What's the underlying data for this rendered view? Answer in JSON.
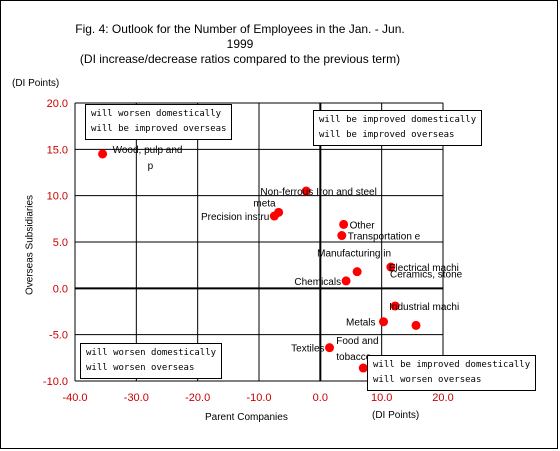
{
  "chart_data": {
    "type": "scatter",
    "title": "Fig. 4: Outlook for the Number of Employees in the Jan. - Jun.",
    "title_line2": "1999",
    "subtitle": "(DI increase/decrease ratios compared to the previous term)",
    "ylabel_units": "(DI Points)",
    "xlabel_units": "(DI Points)",
    "xlabel": "Parent Companies",
    "ylabel": "Overseas Subsidiaries",
    "xlim": [
      -40,
      20
    ],
    "ylim": [
      -10,
      20
    ],
    "x_ticks": [
      "-40.0",
      "-30.0",
      "-20.0",
      "-10.0",
      "0.0",
      "10.0",
      "20.0"
    ],
    "y_ticks": [
      "20.0",
      "15.0",
      "10.0",
      "5.0",
      "0.0",
      "-5.0",
      "-10.0"
    ],
    "grid": true,
    "marker_color": "#ff0000",
    "tick_label_color": "#cc0000",
    "points": [
      {
        "label": "Wood, pulp and p",
        "x": -35.5,
        "y": 14.5
      },
      {
        "label": "Non-ferrous meta",
        "x": -6.8,
        "y": 8.2
      },
      {
        "label": "Precision instru",
        "x": -7.5,
        "y": 7.8
      },
      {
        "label": "Iron and steel",
        "x": -2.3,
        "y": 10.5
      },
      {
        "label": "Other",
        "x": 3.8,
        "y": 6.9
      },
      {
        "label": "Transportation e",
        "x": 3.5,
        "y": 5.7
      },
      {
        "label": "Manufacturing in",
        "x": 6.0,
        "y": 1.8
      },
      {
        "label": "Electrical machi",
        "x": 11.5,
        "y": 2.3
      },
      {
        "label": "Chemicals",
        "x": 4.2,
        "y": 0.8
      },
      {
        "label": "Industrial machi",
        "x": 12.2,
        "y": -1.9
      },
      {
        "label": "Metals",
        "x": 10.3,
        "y": -3.6
      },
      {
        "label": "Ceramics, stone",
        "x": 15.6,
        "y": -4.0
      },
      {
        "label": "Textiles",
        "x": 1.5,
        "y": -6.4
      },
      {
        "label": "Food and tobacco",
        "x": 7.0,
        "y": -8.6
      }
    ],
    "quadrant_notes": {
      "top_left": [
        "will worsen domestically",
        "will be improved overseas"
      ],
      "top_right": [
        "will be improved domestically",
        "will be improved overseas"
      ],
      "bottom_left": [
        "will worsen domestically",
        "will worsen overseas"
      ],
      "bottom_right": [
        "will be improved domestically",
        "will worsen overseas"
      ]
    }
  }
}
